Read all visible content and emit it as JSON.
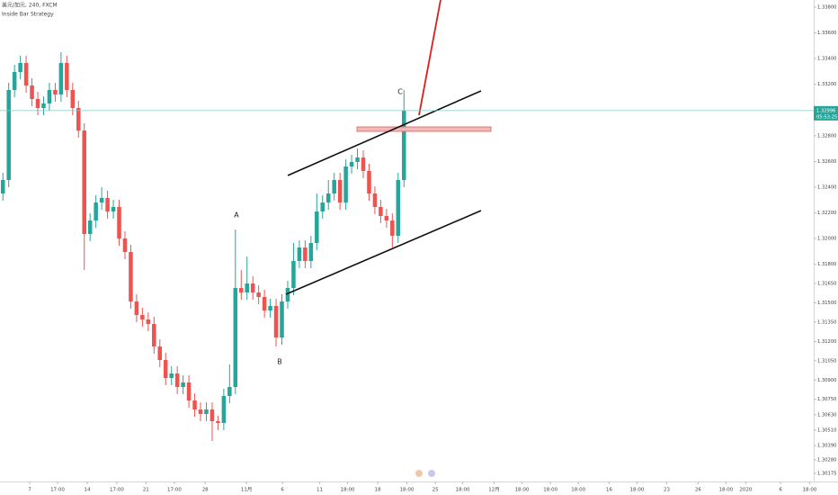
{
  "header": {
    "symbol": "美元/加元, 240, FXCM",
    "indicator": "Inside Bar Strategy"
  },
  "chart_data": {
    "type": "candlestick",
    "up_color": "#26a69a",
    "down_color": "#ef5350",
    "grid": false,
    "x": [
      0,
      1,
      2,
      3,
      4,
      5,
      6,
      7,
      8,
      9,
      10,
      11,
      12,
      13,
      14,
      15,
      16,
      17,
      18,
      19,
      20,
      21,
      22,
      23,
      24,
      25,
      26,
      27,
      28,
      29,
      30,
      31,
      32,
      33,
      34,
      35,
      36,
      37,
      38,
      39,
      40,
      41,
      42,
      43,
      44,
      45,
      46,
      47,
      48,
      49,
      50,
      51,
      52,
      53,
      54,
      55,
      56,
      57,
      58,
      59,
      60,
      61,
      62,
      63,
      64,
      65,
      66,
      67,
      68,
      69
    ],
    "open": [
      1.32351,
      1.32456,
      1.33156,
      1.33296,
      1.33366,
      1.33191,
      1.33086,
      1.33016,
      1.33051,
      1.33156,
      1.33121,
      1.33366,
      1.33156,
      1.33016,
      1.32841,
      1.32036,
      1.32141,
      1.32281,
      1.32316,
      1.32211,
      1.32246,
      1.32001,
      1.31896,
      1.31511,
      1.31406,
      1.31371,
      1.31336,
      1.31161,
      1.31056,
      1.30916,
      1.30951,
      1.30846,
      1.30881,
      1.30741,
      1.30671,
      1.30636,
      1.30671,
      1.3058,
      1.30566,
      1.30776,
      1.30846,
      1.31616,
      1.31581,
      1.31651,
      1.31581,
      1.31546,
      1.31441,
      1.31476,
      1.31231,
      1.31511,
      1.31616,
      1.31826,
      1.31931,
      1.31826,
      1.31966,
      1.32211,
      1.32281,
      1.32351,
      1.32456,
      1.32281,
      1.32561,
      1.32596,
      1.32631,
      1.32526,
      1.32351,
      1.32246,
      1.32176,
      1.32141,
      1.32022,
      1.32456
    ],
    "high": [
      1.32512,
      1.33212,
      1.33352,
      1.33422,
      1.33422,
      1.33247,
      1.33142,
      1.33107,
      1.33212,
      1.33212,
      1.3345,
      1.33422,
      1.33212,
      1.33072,
      1.32897,
      1.32197,
      1.32337,
      1.324,
      1.32372,
      1.32302,
      1.32302,
      1.32057,
      1.31952,
      1.31567,
      1.31462,
      1.31427,
      1.31392,
      1.31217,
      1.31112,
      1.31007,
      1.31007,
      1.30937,
      1.30937,
      1.30797,
      1.30727,
      1.30727,
      1.30727,
      1.30622,
      1.30832,
      1.31021,
      1.32071,
      1.31756,
      1.31861,
      1.31707,
      1.31637,
      1.31602,
      1.31532,
      1.31532,
      1.31567,
      1.31672,
      1.31966,
      1.31987,
      1.31987,
      1.32022,
      1.32351,
      1.32337,
      1.32456,
      1.32512,
      1.32512,
      1.32617,
      1.32652,
      1.32701,
      1.32687,
      1.32582,
      1.32407,
      1.32302,
      1.32232,
      1.32197,
      1.32512,
      1.33156
    ],
    "low": [
      1.32295,
      1.324,
      1.331,
      1.3324,
      1.33135,
      1.3303,
      1.3296,
      1.3296,
      1.32995,
      1.33065,
      1.33065,
      1.331,
      1.3296,
      1.32785,
      1.31756,
      1.3198,
      1.32085,
      1.32225,
      1.32155,
      1.32155,
      1.31945,
      1.3184,
      1.31455,
      1.3135,
      1.31315,
      1.3128,
      1.31105,
      1.31,
      1.3086,
      1.3086,
      1.3079,
      1.3079,
      1.30685,
      1.30615,
      1.3058,
      1.3058,
      1.30426,
      1.3051,
      1.3051,
      1.3072,
      1.3079,
      1.31525,
      1.31525,
      1.31525,
      1.3149,
      1.31385,
      1.31385,
      1.31161,
      1.31175,
      1.31455,
      1.3156,
      1.3177,
      1.3177,
      1.3177,
      1.3191,
      1.32155,
      1.32225,
      1.32295,
      1.32225,
      1.32225,
      1.32505,
      1.3254,
      1.3247,
      1.32295,
      1.3219,
      1.3212,
      1.32085,
      1.31931,
      1.31966,
      1.324
    ],
    "close": [
      1.32456,
      1.33156,
      1.33296,
      1.33366,
      1.33191,
      1.33086,
      1.33016,
      1.33051,
      1.33156,
      1.33121,
      1.33366,
      1.33156,
      1.33016,
      1.32841,
      1.32036,
      1.32141,
      1.32281,
      1.32316,
      1.32211,
      1.32246,
      1.32001,
      1.31896,
      1.31511,
      1.31406,
      1.31371,
      1.31336,
      1.31161,
      1.31056,
      1.30916,
      1.30951,
      1.30846,
      1.30881,
      1.30741,
      1.30671,
      1.30636,
      1.30671,
      1.3058,
      1.30566,
      1.30776,
      1.30846,
      1.31616,
      1.31581,
      1.31651,
      1.31581,
      1.31546,
      1.31441,
      1.31476,
      1.31231,
      1.31511,
      1.31616,
      1.31826,
      1.31931,
      1.31826,
      1.31966,
      1.32211,
      1.32281,
      1.32351,
      1.32456,
      1.32281,
      1.32561,
      1.32596,
      1.32631,
      1.32526,
      1.32351,
      1.32246,
      1.32176,
      1.32141,
      1.32022,
      1.32456,
      1.32996
    ],
    "xlim": [
      -0.5,
      139.5
    ],
    "ylim": [
      1.30111,
      1.33856
    ],
    "xticks": [
      {
        "value": 4.6,
        "label": "7"
      },
      {
        "value": 9.4,
        "label": "17:00"
      },
      {
        "value": 14.5,
        "label": "14"
      },
      {
        "value": 19.6,
        "label": "17:00"
      },
      {
        "value": 24.6,
        "label": "21"
      },
      {
        "value": 29.5,
        "label": "17:00"
      },
      {
        "value": 34.8,
        "label": "28"
      },
      {
        "value": 41.9,
        "label": "11月"
      },
      {
        "value": 48.1,
        "label": "6"
      },
      {
        "value": 54.5,
        "label": "11"
      },
      {
        "value": 59.3,
        "label": "18:00"
      },
      {
        "value": 64.5,
        "label": "18"
      },
      {
        "value": 69.5,
        "label": "18:00"
      },
      {
        "value": 74.4,
        "label": "25"
      },
      {
        "value": 79.1,
        "label": "18:00"
      },
      {
        "value": 84.5,
        "label": "12月"
      },
      {
        "value": 89.3,
        "label": "18:00"
      },
      {
        "value": 94.2,
        "label": "18:00"
      },
      {
        "value": 99,
        "label": "18:00"
      },
      {
        "value": 104.3,
        "label": "16"
      },
      {
        "value": 109.1,
        "label": "18:00"
      },
      {
        "value": 114.2,
        "label": "23"
      },
      {
        "value": 119.6,
        "label": "26"
      },
      {
        "value": 124.4,
        "label": "18:00"
      },
      {
        "value": 127.8,
        "label": "2020"
      },
      {
        "value": 133.8,
        "label": "6"
      },
      {
        "value": 138.8,
        "label": "18:00"
      }
    ],
    "yticks": [
      {
        "value": 1.338,
        "label": "1.33800"
      },
      {
        "value": 1.336,
        "label": "1.33600"
      },
      {
        "value": 1.334,
        "label": "1.33400"
      },
      {
        "value": 1.332,
        "label": "1.33200"
      },
      {
        "value": 1.328,
        "label": "1.32800"
      },
      {
        "value": 1.326,
        "label": "1.32600"
      },
      {
        "value": 1.324,
        "label": "1.32400"
      },
      {
        "value": 1.322,
        "label": "1.32200"
      },
      {
        "value": 1.32,
        "label": "1.32000"
      },
      {
        "value": 1.318,
        "label": "1.31800"
      },
      {
        "value": 1.3165,
        "label": "1.31650"
      },
      {
        "value": 1.315,
        "label": "1.31500"
      },
      {
        "value": 1.3135,
        "label": "1.31350"
      },
      {
        "value": 1.312,
        "label": "1.31200"
      },
      {
        "value": 1.3105,
        "label": "1.31050"
      },
      {
        "value": 1.309,
        "label": "1.30900"
      },
      {
        "value": 1.3075,
        "label": "1.30750"
      },
      {
        "value": 1.3063,
        "label": "1.30630"
      },
      {
        "value": 1.3051,
        "label": "1.30510"
      },
      {
        "value": 1.3039,
        "label": "1.30390"
      },
      {
        "value": 1.3028,
        "label": "1.30280"
      },
      {
        "value": 1.30175,
        "label": "1.30175"
      }
    ],
    "last_price": {
      "value": 1.32996,
      "label": "1.32996"
    },
    "countdown": "05:53:25",
    "annotations": [
      "A",
      "B",
      "C"
    ]
  }
}
